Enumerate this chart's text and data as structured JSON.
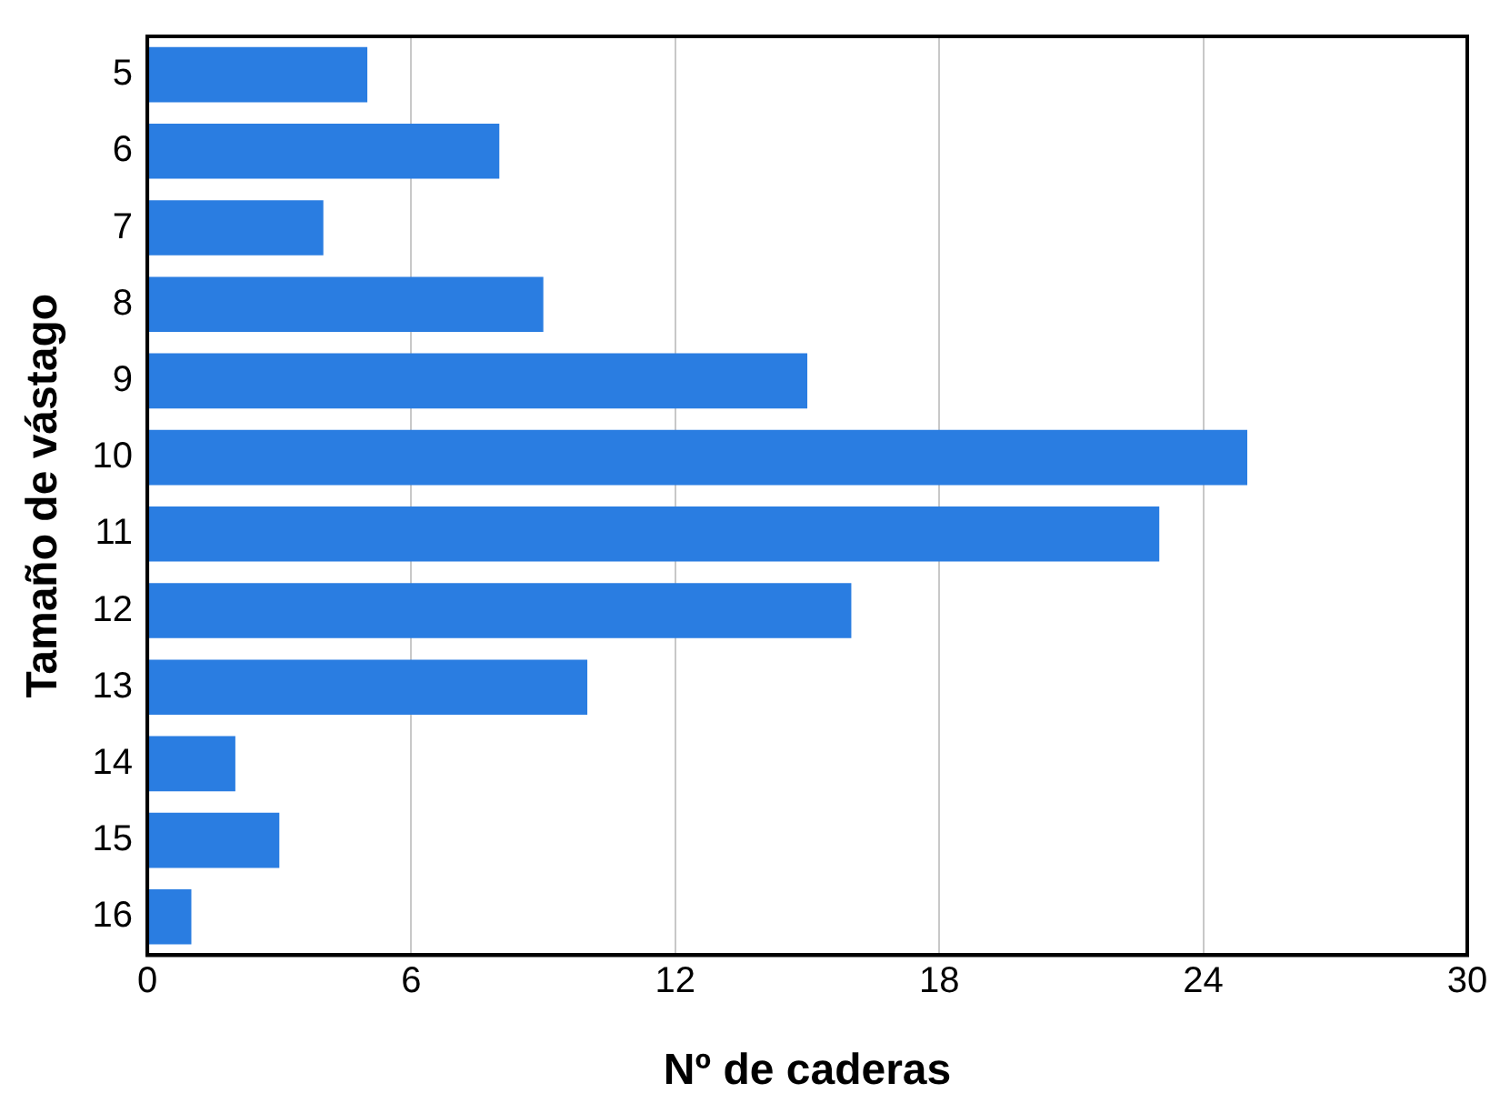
{
  "chart_data": {
    "type": "bar",
    "orientation": "horizontal",
    "xlabel": "Nº de caderas",
    "ylabel": "Tamaño de vástago",
    "categories": [
      "5",
      "6",
      "7",
      "8",
      "9",
      "10",
      "11",
      "12",
      "13",
      "14",
      "15",
      "16"
    ],
    "values": [
      5,
      8,
      4,
      9,
      15,
      25,
      23,
      16,
      10,
      2,
      3,
      1
    ],
    "color": "#2a7de1",
    "xlim": [
      0,
      30
    ],
    "xticks": [
      0,
      6,
      12,
      18,
      24,
      30
    ],
    "grid": "x",
    "legend": false
  }
}
